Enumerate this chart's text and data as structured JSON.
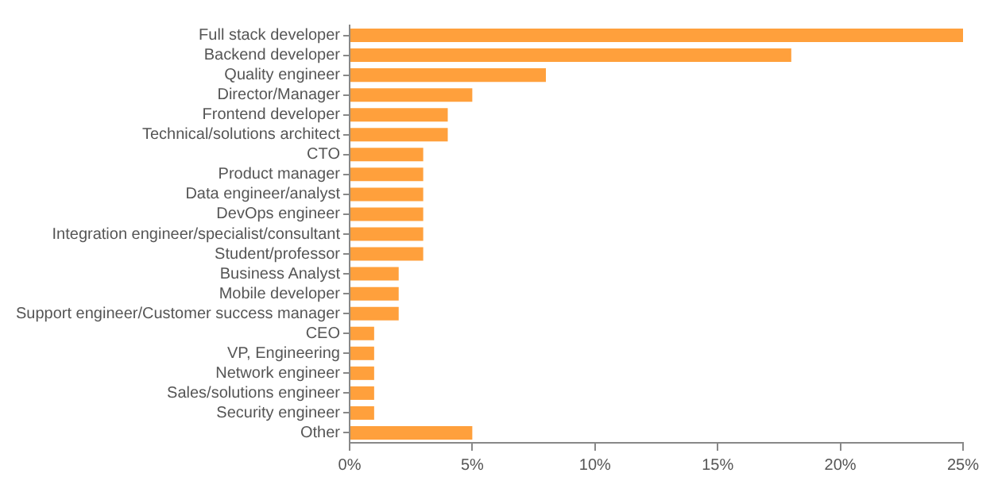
{
  "chart_data": {
    "type": "bar",
    "orientation": "horizontal",
    "categories": [
      "Full stack developer",
      "Backend developer",
      "Quality engineer",
      "Director/Manager",
      "Frontend developer",
      "Technical/solutions architect",
      "CTO",
      "Product manager",
      "Data engineer/analyst",
      "DevOps engineer",
      "Integration engineer/specialist/consultant",
      "Student/professor",
      "Business Analyst",
      "Mobile developer",
      "Support engineer/Customer success manager",
      "CEO",
      "VP, Engineering",
      "Network engineer",
      "Sales/solutions engineer",
      "Security engineer",
      "Other"
    ],
    "values": [
      25,
      18,
      8,
      5,
      4,
      4,
      3,
      3,
      3,
      3,
      3,
      3,
      2,
      2,
      2,
      1,
      1,
      1,
      1,
      1,
      5
    ],
    "color": "#ffa03c",
    "xlim": [
      0,
      25
    ],
    "xticks": [
      {
        "value": 0,
        "label": "0%"
      },
      {
        "value": 5,
        "label": "5%"
      },
      {
        "value": 10,
        "label": "10%"
      },
      {
        "value": 15,
        "label": "15%"
      },
      {
        "value": 20,
        "label": "20%"
      },
      {
        "value": 25,
        "label": "25%"
      }
    ],
    "grid": false,
    "legend": false
  }
}
